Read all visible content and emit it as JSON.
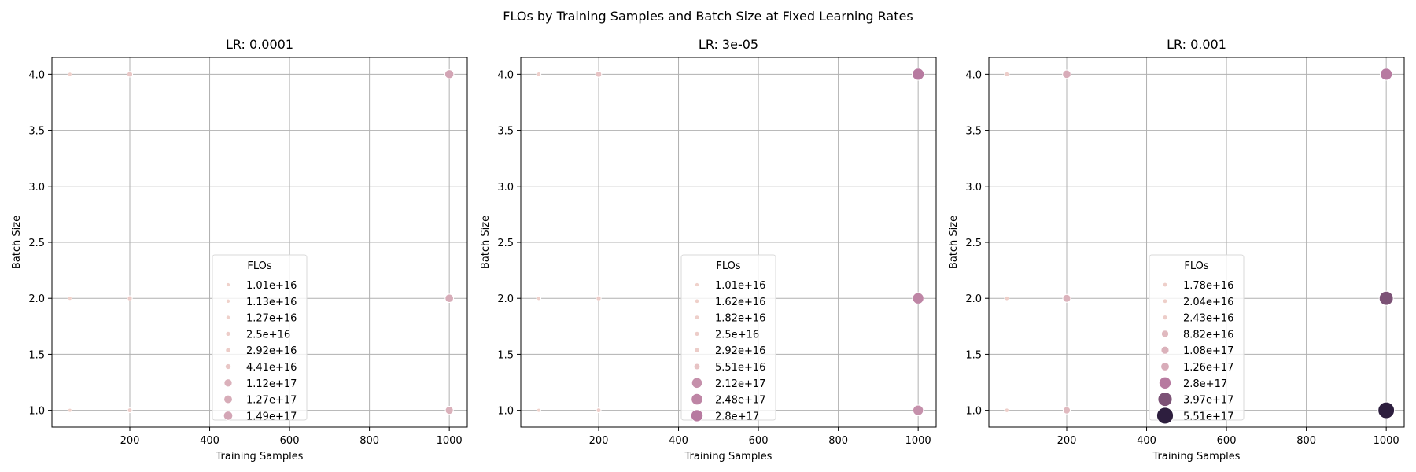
{
  "figure": {
    "title": "FLOs by Training Samples and Batch Size at Fixed Learning Rates"
  },
  "colors": {
    "grid": "#b0b0b0",
    "palette_light": "#f0d2cb",
    "palette_dark": "#2d1e3e"
  },
  "chart_data": [
    {
      "type": "scatter",
      "title": "LR: 0.0001",
      "xlabel": "Training Samples",
      "ylabel": "Batch Size",
      "xlim": [
        5,
        1045
      ],
      "ylim": [
        0.85,
        4.15
      ],
      "xticks": [
        200,
        400,
        600,
        800,
        1000
      ],
      "xtick_labels": [
        "200",
        "400",
        "600",
        "800",
        "1000"
      ],
      "yticks": [
        1.0,
        1.5,
        2.0,
        2.5,
        3.0,
        3.5,
        4.0
      ],
      "ytick_labels": [
        "1.0",
        "1.5",
        "2.0",
        "2.5",
        "3.0",
        "3.5",
        "4.0"
      ],
      "grid": true,
      "size_norm": [
        1.01e+16,
        5.51e+17
      ],
      "hue_norm": [
        1.01e+16,
        5.51e+17
      ],
      "legend": {
        "title": "FLOs",
        "placement": "lower-center",
        "entries": [
          {
            "label": "1.01e+16",
            "value": 1.01e+16
          },
          {
            "label": "1.13e+16",
            "value": 1.13e+16
          },
          {
            "label": "1.27e+16",
            "value": 1.27e+16
          },
          {
            "label": "2.5e+16",
            "value": 2.5e+16
          },
          {
            "label": "2.92e+16",
            "value": 2.92e+16
          },
          {
            "label": "4.41e+16",
            "value": 4.41e+16
          },
          {
            "label": "1.12e+17",
            "value": 1.12e+17
          },
          {
            "label": "1.27e+17",
            "value": 1.27e+17
          },
          {
            "label": "1.49e+17",
            "value": 1.49e+17
          }
        ]
      },
      "points": [
        {
          "x": 50,
          "y": 1,
          "flos": 1.01e+16
        },
        {
          "x": 50,
          "y": 2,
          "flos": 1.13e+16
        },
        {
          "x": 50,
          "y": 4,
          "flos": 1.27e+16
        },
        {
          "x": 200,
          "y": 1,
          "flos": 2.5e+16
        },
        {
          "x": 200,
          "y": 2,
          "flos": 2.92e+16
        },
        {
          "x": 200,
          "y": 4,
          "flos": 4.41e+16
        },
        {
          "x": 1000,
          "y": 1,
          "flos": 1.12e+17
        },
        {
          "x": 1000,
          "y": 2,
          "flos": 1.27e+17
        },
        {
          "x": 1000,
          "y": 4,
          "flos": 1.49e+17
        }
      ]
    },
    {
      "type": "scatter",
      "title": "LR: 3e-05",
      "xlabel": "Training Samples",
      "ylabel": "Batch Size",
      "xlim": [
        5,
        1045
      ],
      "ylim": [
        0.85,
        4.15
      ],
      "xticks": [
        200,
        400,
        600,
        800,
        1000
      ],
      "xtick_labels": [
        "200",
        "400",
        "600",
        "800",
        "1000"
      ],
      "yticks": [
        1.0,
        1.5,
        2.0,
        2.5,
        3.0,
        3.5,
        4.0
      ],
      "ytick_labels": [
        "1.0",
        "1.5",
        "2.0",
        "2.5",
        "3.0",
        "3.5",
        "4.0"
      ],
      "grid": true,
      "size_norm": [
        1.01e+16,
        5.51e+17
      ],
      "hue_norm": [
        1.01e+16,
        5.51e+17
      ],
      "legend": {
        "title": "FLOs",
        "placement": "lower-center",
        "entries": [
          {
            "label": "1.01e+16",
            "value": 1.01e+16
          },
          {
            "label": "1.62e+16",
            "value": 1.62e+16
          },
          {
            "label": "1.82e+16",
            "value": 1.82e+16
          },
          {
            "label": "2.5e+16",
            "value": 2.5e+16
          },
          {
            "label": "2.92e+16",
            "value": 2.92e+16
          },
          {
            "label": "5.51e+16",
            "value": 5.51e+16
          },
          {
            "label": "2.12e+17",
            "value": 2.12e+17
          },
          {
            "label": "2.48e+17",
            "value": 2.48e+17
          },
          {
            "label": "2.8e+17",
            "value": 2.8e+17
          }
        ]
      },
      "points": [
        {
          "x": 50,
          "y": 1,
          "flos": 1.01e+16
        },
        {
          "x": 50,
          "y": 2,
          "flos": 1.62e+16
        },
        {
          "x": 50,
          "y": 4,
          "flos": 1.82e+16
        },
        {
          "x": 200,
          "y": 1,
          "flos": 2.5e+16
        },
        {
          "x": 200,
          "y": 2,
          "flos": 2.92e+16
        },
        {
          "x": 200,
          "y": 4,
          "flos": 5.51e+16
        },
        {
          "x": 1000,
          "y": 1,
          "flos": 2.12e+17
        },
        {
          "x": 1000,
          "y": 2,
          "flos": 2.48e+17
        },
        {
          "x": 1000,
          "y": 4,
          "flos": 2.8e+17
        }
      ]
    },
    {
      "type": "scatter",
      "title": "LR: 0.001",
      "xlabel": "Training Samples",
      "ylabel": "Batch Size",
      "xlim": [
        5,
        1045
      ],
      "ylim": [
        0.85,
        4.15
      ],
      "xticks": [
        200,
        400,
        600,
        800,
        1000
      ],
      "xtick_labels": [
        "200",
        "400",
        "600",
        "800",
        "1000"
      ],
      "yticks": [
        1.0,
        1.5,
        2.0,
        2.5,
        3.0,
        3.5,
        4.0
      ],
      "ytick_labels": [
        "1.0",
        "1.5",
        "2.0",
        "2.5",
        "3.0",
        "3.5",
        "4.0"
      ],
      "grid": true,
      "size_norm": [
        1.01e+16,
        5.51e+17
      ],
      "hue_norm": [
        1.01e+16,
        5.51e+17
      ],
      "legend": {
        "title": "FLOs",
        "placement": "lower-center",
        "entries": [
          {
            "label": "1.78e+16",
            "value": 1.78e+16
          },
          {
            "label": "2.04e+16",
            "value": 2.04e+16
          },
          {
            "label": "2.43e+16",
            "value": 2.43e+16
          },
          {
            "label": "8.82e+16",
            "value": 8.82e+16
          },
          {
            "label": "1.08e+17",
            "value": 1.08e+17
          },
          {
            "label": "1.26e+17",
            "value": 1.26e+17
          },
          {
            "label": "2.8e+17",
            "value": 2.8e+17
          },
          {
            "label": "3.97e+17",
            "value": 3.97e+17
          },
          {
            "label": "5.51e+17",
            "value": 5.51e+17
          }
        ]
      },
      "points": [
        {
          "x": 50,
          "y": 1,
          "flos": 1.78e+16
        },
        {
          "x": 50,
          "y": 2,
          "flos": 2.04e+16
        },
        {
          "x": 50,
          "y": 4,
          "flos": 2.43e+16
        },
        {
          "x": 200,
          "y": 1,
          "flos": 8.82e+16
        },
        {
          "x": 200,
          "y": 2,
          "flos": 1.08e+17
        },
        {
          "x": 200,
          "y": 4,
          "flos": 1.26e+17
        },
        {
          "x": 1000,
          "y": 1,
          "flos": 5.51e+17
        },
        {
          "x": 1000,
          "y": 2,
          "flos": 3.97e+17
        },
        {
          "x": 1000,
          "y": 4,
          "flos": 2.8e+17
        }
      ]
    }
  ]
}
